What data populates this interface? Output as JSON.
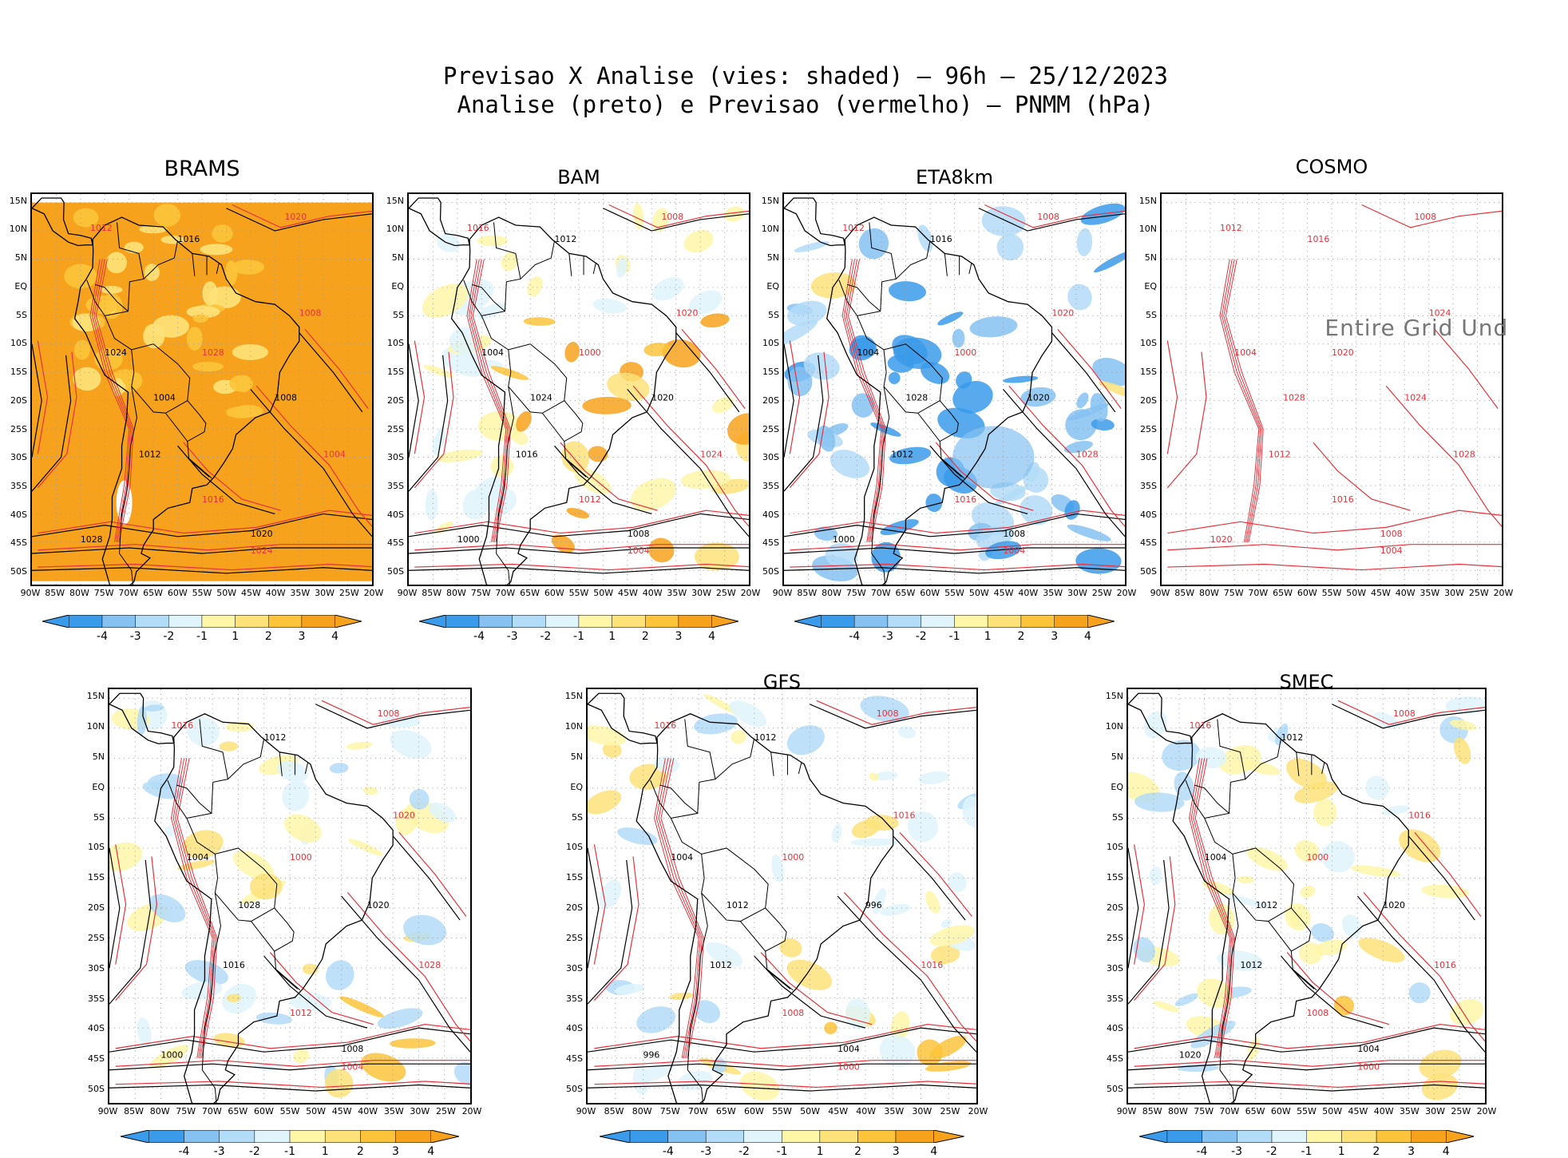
{
  "title_line1": "Previsao X Analise (vies: shaded) — 96h — 25/12/2023",
  "title_line2": "Analise (preto) e Previsao (vermelho) — PNMM (hPa)",
  "lat_labels": [
    "15N",
    "10N",
    "5N",
    "EQ",
    "5S",
    "10S",
    "15S",
    "20S",
    "25S",
    "30S",
    "35S",
    "40S",
    "45S",
    "50S"
  ],
  "lon_labels": [
    "90W",
    "85W",
    "80W",
    "75W",
    "70W",
    "65W",
    "60W",
    "55W",
    "50W",
    "45W",
    "40W",
    "35W",
    "30W",
    "25W",
    "20W"
  ],
  "colorbar": {
    "labels": [
      "-4",
      "-3",
      "-2",
      "-1",
      "1",
      "2",
      "3",
      "4"
    ],
    "colors": [
      "#3a9bea",
      "#85c2f2",
      "#b3dcf8",
      "#dff5fb",
      "#ffffff",
      "#fff6a8",
      "#fde27a",
      "#fbc43b",
      "#f7a21c"
    ]
  },
  "colors": {
    "analysis": "#000000",
    "forecast": "#e8313a",
    "grid": "#9b9b9b"
  },
  "no_data_message": "Entire Grid Und",
  "panels": [
    {
      "name": "BRAMS",
      "title": "BRAMS",
      "has_colorbar": true,
      "style": "orange",
      "labels": [
        "1012",
        "1016",
        "1020",
        "1024",
        "1028",
        "1008",
        "1004"
      ]
    },
    {
      "name": "BAM",
      "title": "BAM",
      "has_colorbar": true,
      "style": "mixed",
      "labels": [
        "1016",
        "1012",
        "1008",
        "1004",
        "1000",
        "1020",
        "1024"
      ]
    },
    {
      "name": "ETA8km",
      "title": "ETA8km",
      "has_colorbar": true,
      "style": "blue",
      "labels": [
        "1012",
        "1016",
        "1008",
        "1004",
        "1000",
        "1020",
        "1028"
      ]
    },
    {
      "name": "COSMO",
      "title": "COSMO",
      "has_colorbar": false,
      "style": "empty",
      "labels": [
        "1012",
        "1016",
        "1008",
        "1004",
        "1020",
        "1024",
        "1028"
      ]
    },
    {
      "name": "unnamed",
      "title": "",
      "has_colorbar": true,
      "style": "light",
      "labels": [
        "1016",
        "1012",
        "1008",
        "1004",
        "1000",
        "1020",
        "1028"
      ]
    },
    {
      "name": "GFS",
      "title": "GFS",
      "has_colorbar": true,
      "style": "light",
      "labels": [
        "1016",
        "1012",
        "1008",
        "1004",
        "1000",
        "996"
      ]
    },
    {
      "name": "SMEC",
      "title": "SMEC",
      "has_colorbar": true,
      "style": "light",
      "labels": [
        "1016",
        "1012",
        "1008",
        "1004",
        "1000",
        "1020"
      ]
    }
  ]
}
